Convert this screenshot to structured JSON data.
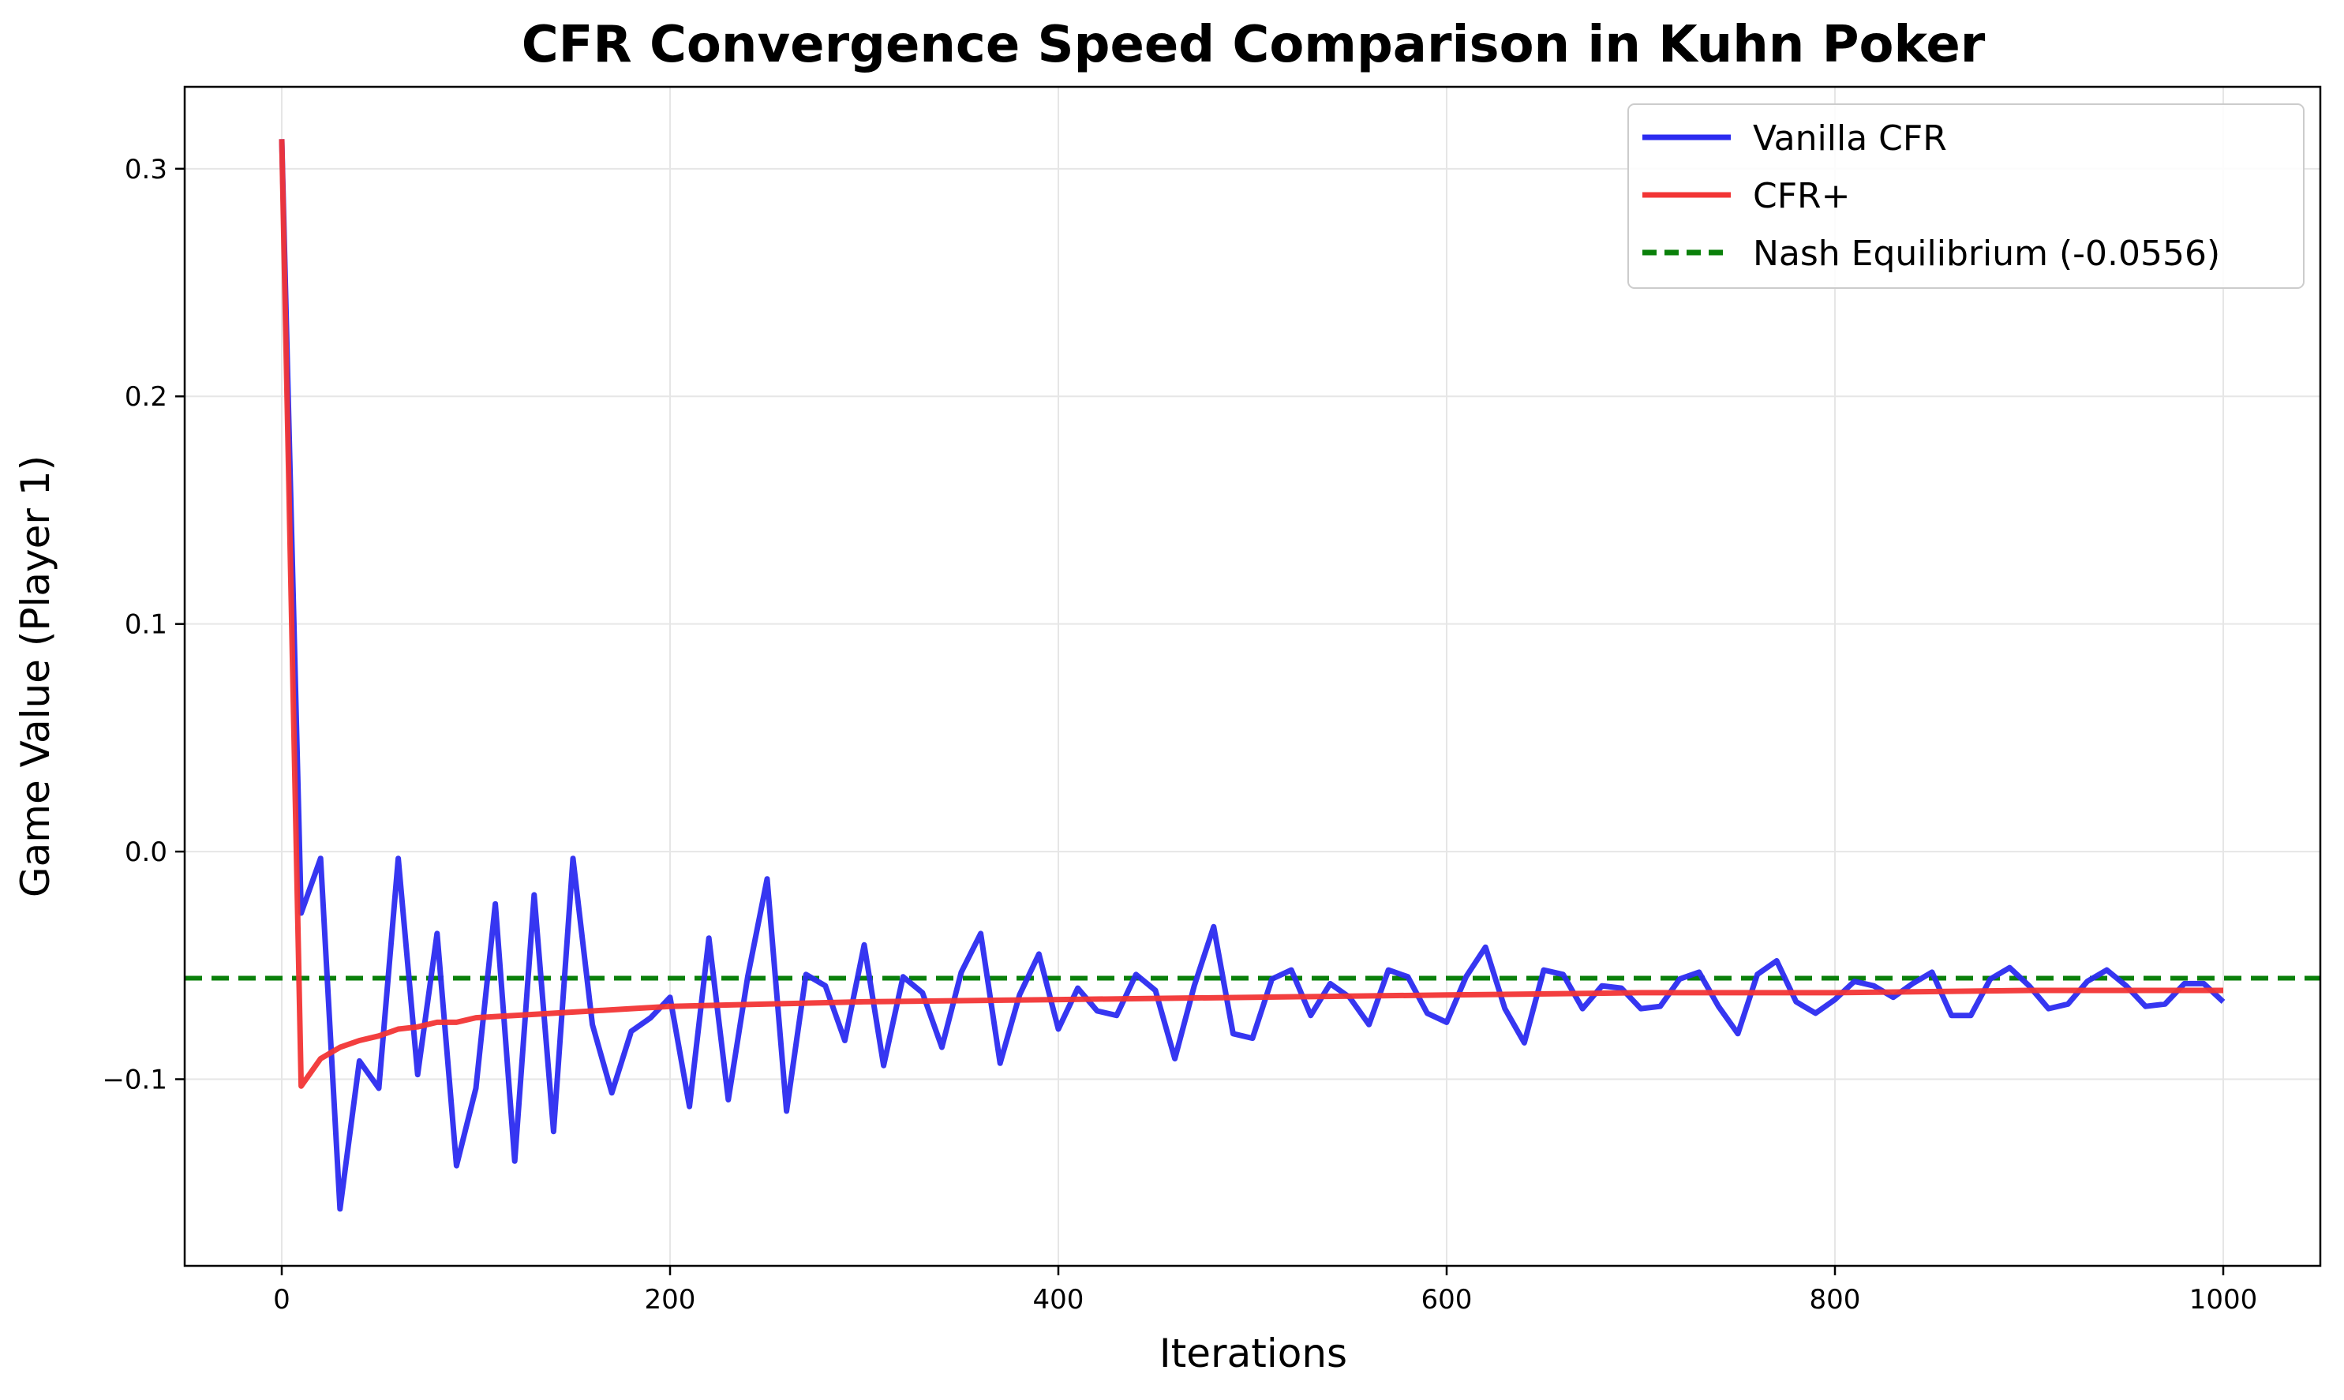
{
  "chart_data": {
    "type": "line",
    "title": "CFR Convergence Speed Comparison in Kuhn Poker",
    "xlabel": "Iterations",
    "ylabel": "Game Value (Player 1)",
    "xlim": [
      -50,
      1050
    ],
    "ylim": [
      -0.182,
      0.336
    ],
    "xticks": [
      0,
      200,
      400,
      600,
      800,
      1000
    ],
    "xtick_labels": [
      "0",
      "200",
      "400",
      "600",
      "800",
      "1000"
    ],
    "yticks": [
      -0.1,
      0.0,
      0.1,
      0.2,
      0.3
    ],
    "ytick_labels": [
      "−0.1",
      "0.0",
      "0.1",
      "0.2",
      "0.3"
    ],
    "grid": true,
    "legend_position": "top-right",
    "series": [
      {
        "name": "Vanilla CFR",
        "color": "#2b2bf0",
        "x": [
          0,
          10,
          20,
          30,
          40,
          50,
          60,
          70,
          80,
          90,
          100,
          110,
          120,
          130,
          140,
          150,
          160,
          170,
          180,
          190,
          200,
          210,
          220,
          230,
          240,
          250,
          260,
          270,
          280,
          290,
          300,
          310,
          320,
          330,
          340,
          350,
          360,
          370,
          380,
          390,
          400,
          410,
          420,
          430,
          440,
          450,
          460,
          470,
          480,
          490,
          500,
          510,
          520,
          530,
          540,
          550,
          560,
          570,
          580,
          590,
          600,
          610,
          620,
          630,
          640,
          650,
          660,
          670,
          680,
          690,
          700,
          710,
          720,
          730,
          740,
          750,
          760,
          770,
          780,
          790,
          800,
          810,
          820,
          830,
          840,
          850,
          860,
          870,
          880,
          890,
          900,
          910,
          920,
          930,
          940,
          950,
          960,
          970,
          980,
          990,
          1000
        ],
        "values": [
          0.313,
          -0.027,
          -0.003,
          -0.157,
          -0.092,
          -0.104,
          -0.003,
          -0.098,
          -0.036,
          -0.138,
          -0.104,
          -0.023,
          -0.136,
          -0.019,
          -0.123,
          -0.003,
          -0.076,
          -0.106,
          -0.079,
          -0.073,
          -0.064,
          -0.112,
          -0.038,
          -0.109,
          -0.055,
          -0.012,
          -0.114,
          -0.054,
          -0.059,
          -0.083,
          -0.041,
          -0.094,
          -0.055,
          -0.062,
          -0.086,
          -0.053,
          -0.036,
          -0.093,
          -0.063,
          -0.045,
          -0.078,
          -0.06,
          -0.07,
          -0.072,
          -0.054,
          -0.061,
          -0.091,
          -0.059,
          -0.033,
          -0.08,
          -0.082,
          -0.056,
          -0.052,
          -0.072,
          -0.058,
          -0.064,
          -0.076,
          -0.052,
          -0.055,
          -0.071,
          -0.075,
          -0.055,
          -0.042,
          -0.069,
          -0.084,
          -0.052,
          -0.054,
          -0.069,
          -0.059,
          -0.06,
          -0.069,
          -0.068,
          -0.056,
          -0.053,
          -0.068,
          -0.08,
          -0.054,
          -0.048,
          -0.066,
          -0.071,
          -0.065,
          -0.057,
          -0.059,
          -0.064,
          -0.058,
          -0.053,
          -0.072,
          -0.072,
          -0.056,
          -0.051,
          -0.059,
          -0.069,
          -0.067,
          -0.057,
          -0.052,
          -0.059,
          -0.068,
          -0.067,
          -0.058,
          -0.058,
          -0.066
        ]
      },
      {
        "name": "CFR+",
        "color": "#f23535",
        "x": [
          0,
          10,
          20,
          30,
          40,
          50,
          60,
          70,
          80,
          90,
          100,
          120,
          140,
          160,
          180,
          200,
          250,
          300,
          400,
          500,
          600,
          700,
          800,
          900,
          1000
        ],
        "values": [
          0.313,
          -0.103,
          -0.091,
          -0.086,
          -0.083,
          -0.081,
          -0.078,
          -0.077,
          -0.075,
          -0.075,
          -0.073,
          -0.072,
          -0.071,
          -0.07,
          -0.069,
          -0.068,
          -0.067,
          -0.066,
          -0.065,
          -0.064,
          -0.063,
          -0.062,
          -0.062,
          -0.061,
          -0.061
        ]
      }
    ],
    "reference_line": {
      "name": "Nash Equilibrium (-0.0556)",
      "y": -0.0556,
      "color": "#0a800a",
      "style": "dashed"
    }
  }
}
